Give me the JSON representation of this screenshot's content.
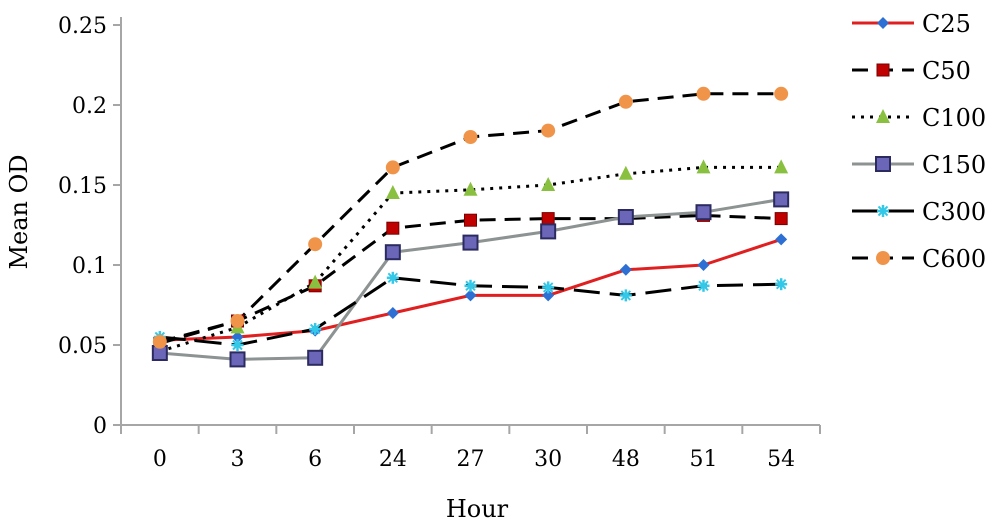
{
  "chart_data": {
    "type": "line",
    "xlabel": "Hour",
    "ylabel": "Mean OD",
    "categories": [
      "0",
      "3",
      "6",
      "24",
      "27",
      "30",
      "48",
      "51",
      "54"
    ],
    "ylim": [
      0,
      0.25
    ],
    "yticks": [
      "0",
      "0.05",
      "0.1",
      "0.15",
      "0.2",
      "0.25"
    ],
    "ytick_values": [
      0,
      0.05,
      0.1,
      0.15,
      0.2,
      0.25
    ],
    "grid": false,
    "legend_position": "right",
    "series": [
      {
        "name": "C25",
        "color": "#e02020",
        "dash": "solid",
        "marker": "diamond",
        "values": [
          0.053,
          0.055,
          0.059,
          0.07,
          0.081,
          0.081,
          0.097,
          0.1,
          0.116
        ]
      },
      {
        "name": "C50",
        "color": "#000000",
        "dash": "dashed",
        "marker": "square",
        "values": [
          0.051,
          0.065,
          0.087,
          0.123,
          0.128,
          0.129,
          0.129,
          0.131,
          0.129
        ]
      },
      {
        "name": "C100",
        "color": "#000000",
        "dash": "dotted",
        "marker": "triangle",
        "values": [
          0.046,
          0.061,
          0.089,
          0.145,
          0.147,
          0.15,
          0.157,
          0.161,
          0.161
        ]
      },
      {
        "name": "C150",
        "color": "#8c9392",
        "dash": "solid",
        "marker": "square-outline",
        "values": [
          0.045,
          0.041,
          0.042,
          0.108,
          0.114,
          0.121,
          0.13,
          0.133,
          0.141
        ]
      },
      {
        "name": "C300",
        "color": "#000000",
        "dash": "longdash",
        "marker": "asterisk",
        "values": [
          0.055,
          0.05,
          0.06,
          0.092,
          0.087,
          0.086,
          0.081,
          0.087,
          0.088
        ]
      },
      {
        "name": "C600",
        "color": "#000000",
        "dash": "dashed",
        "marker": "circle",
        "values": [
          0.052,
          0.065,
          0.113,
          0.161,
          0.18,
          0.184,
          0.202,
          0.207,
          0.207
        ]
      }
    ]
  },
  "colors": {
    "c25_marker": "#2e6fd4",
    "c50_marker": "#c00000",
    "c100_marker": "#8ac040",
    "c150_marker": "#6b66b8",
    "c300_marker": "#33c8e8",
    "c600_marker": "#f0944a",
    "axis": "#a6a6a6"
  }
}
